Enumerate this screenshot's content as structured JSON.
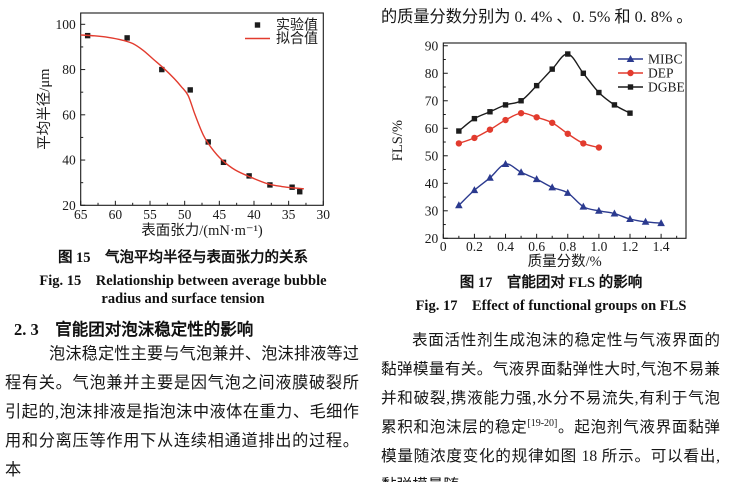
{
  "right_column": {
    "top_line": "的质量分数分别为 0. 4% 、0. 5% 和 0. 8% 。",
    "paragraph_part1": "表面活性剂生成泡沫的稳定性与气液界面的黏弹模量有关。气液界面黏弹性大时,气泡不易兼并和破裂,携液能力强,水分不易流失,有利于气泡累积和泡沫层的稳定",
    "paragraph_sup": "[19-20]",
    "paragraph_part2": "。起泡剂气液界面黏弹模量随浓度变化的规律如图 18 所示。可以看出,黏弹模量随"
  },
  "left_column": {
    "section_heading": "2. 3　官能团对泡沫稳定性的影响",
    "paragraph": "泡沫稳定性主要与气泡兼并、泡沫排液等过程有关。气泡兼并主要是因气泡之间液膜破裂所引起的,泡沫排液是指泡沫中液体在重力、毛细作用和分离压等作用下从连续相通道排出的过程。本"
  },
  "fig15": {
    "caption_cn": "图 15　气泡平均半径与表面张力的关系",
    "caption_en_line1": "Fig. 15　Relationship between average bubble",
    "caption_en_line2": "radius and surface tension"
  },
  "fig17": {
    "caption_cn": "图 17　官能团对 FLS 的影响",
    "caption_en": "Fig. 17　Effect of functional groups on FLS"
  },
  "chart_data": [
    {
      "name": "fig15",
      "type": "scatter",
      "title": "",
      "xlabel": "表面张力/(mN·m⁻¹)",
      "ylabel": "平均半径/μm",
      "xlim": [
        65,
        30
      ],
      "ylim": [
        20,
        105
      ],
      "x_ticks": [
        65,
        60,
        55,
        50,
        45,
        40,
        35,
        30
      ],
      "x_tick_labels": [
        "65",
        "60",
        "55",
        "50",
        "45",
        "40",
        "35",
        "30"
      ],
      "y_ticks": [
        20,
        40,
        60,
        80,
        100
      ],
      "y_tick_labels": [
        "20",
        "40",
        "60",
        "80",
        "100"
      ],
      "x_minor_step": 2.5,
      "y_minor_step": 10,
      "grid": false,
      "legend_position": "top-right",
      "series": [
        {
          "name": "实验值",
          "draw": "markers",
          "marker": "square",
          "color": "#1c1c1c",
          "x": [
            64,
            58.3,
            53.3,
            49.2,
            46.6,
            44.4,
            40.7,
            37.7,
            34.5,
            33.4
          ],
          "y": [
            95,
            94,
            80,
            71,
            48,
            39,
            33,
            29,
            28,
            26
          ]
        },
        {
          "name": "拟合值",
          "draw": "line",
          "color": "#e23b2e",
          "x": [
            65,
            63,
            61,
            59,
            57.5,
            56,
            54.5,
            53,
            51.5,
            50.5,
            49.5,
            48.5,
            47.3,
            46.1,
            44.6,
            42.7,
            40.3,
            38,
            36,
            34,
            32.8
          ],
          "y": [
            95.3,
            94.9,
            94.2,
            93,
            91.5,
            88.5,
            84.5,
            80.5,
            76,
            72.5,
            68.5,
            60,
            51,
            45.2,
            40,
            35.6,
            32.2,
            29.5,
            28.3,
            27.6,
            27.3
          ]
        }
      ]
    },
    {
      "name": "fig17",
      "type": "line",
      "title": "",
      "xlabel": "质量分数/%",
      "ylabel": "FLS/%",
      "xlim": [
        0,
        1.56
      ],
      "ylim": [
        20,
        91
      ],
      "x_ticks": [
        0,
        0.2,
        0.4,
        0.6,
        0.8,
        1.0,
        1.2,
        1.4
      ],
      "x_tick_labels": [
        "0",
        "0.2",
        "0.4",
        "0.6",
        "0.8",
        "1.0",
        "1.2",
        "1.4"
      ],
      "y_ticks": [
        20,
        30,
        40,
        50,
        60,
        70,
        80,
        90
      ],
      "y_tick_labels": [
        "20",
        "30",
        "40",
        "50",
        "60",
        "70",
        "80",
        "90"
      ],
      "x_minor_step": 0.1,
      "y_minor_step": 5,
      "grid": false,
      "legend_position": "top-right",
      "series": [
        {
          "name": "MIBC",
          "draw": "line+markers",
          "marker": "triangle",
          "color": "#2b3a8f",
          "x": [
            0.1,
            0.2,
            0.3,
            0.4,
            0.5,
            0.6,
            0.7,
            0.8,
            0.9,
            1.0,
            1.1,
            1.2,
            1.3,
            1.4
          ],
          "y": [
            32,
            37.5,
            42,
            47,
            44,
            41.5,
            38.5,
            36.5,
            31.5,
            30,
            29,
            27,
            26,
            25.5
          ]
        },
        {
          "name": "DEP",
          "draw": "line+markers",
          "marker": "circle",
          "color": "#e23b2e",
          "x": [
            0.1,
            0.2,
            0.3,
            0.4,
            0.5,
            0.6,
            0.7,
            0.8,
            0.9,
            1.0
          ],
          "y": [
            54.5,
            56.5,
            59.5,
            63,
            65.5,
            64,
            62,
            58,
            54.5,
            53
          ]
        },
        {
          "name": "DGBE",
          "draw": "line+markers",
          "marker": "square",
          "color": "#1c1c1c",
          "x": [
            0.1,
            0.2,
            0.3,
            0.4,
            0.5,
            0.6,
            0.7,
            0.8,
            0.9,
            1.0,
            1.1,
            1.2
          ],
          "y": [
            59,
            63.5,
            66,
            68.5,
            70,
            75.5,
            81.5,
            87,
            80,
            73,
            68.5,
            65.5
          ]
        }
      ]
    }
  ]
}
